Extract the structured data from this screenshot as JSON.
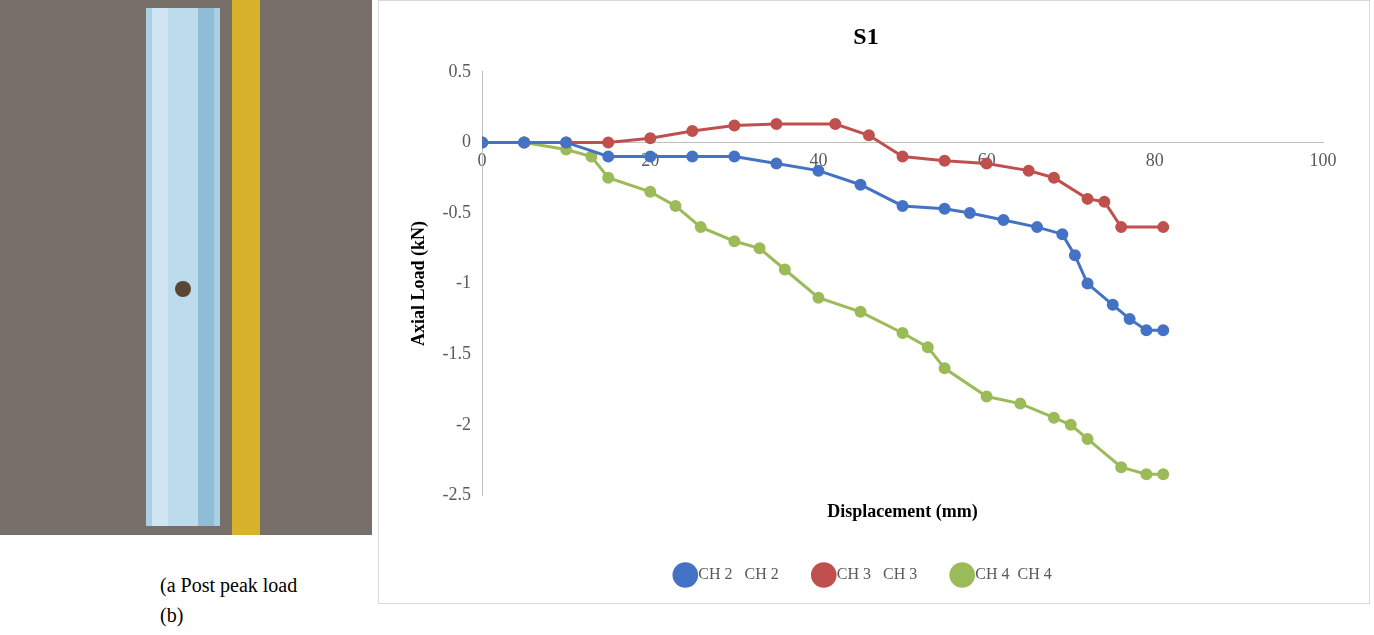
{
  "panel_captions": [
    "(a Post peak load",
    "(b)"
  ],
  "chart_data": {
    "type": "line",
    "title": "S1",
    "x_label": "Displacement (mm)",
    "y_label": "Axial Load (kN)",
    "xlim": [
      0,
      100
    ],
    "xticks": [
      0,
      20,
      40,
      60,
      80,
      100
    ],
    "ylim": [
      -2.5,
      0.5
    ],
    "yticks": [
      -2.5,
      -2,
      -1.5,
      -1,
      -0.5,
      0,
      0.5
    ],
    "grid": false,
    "legend": "bottom",
    "series": [
      {
        "name": "CH 2   CH 2",
        "color": "#4472c4",
        "marker": "circle",
        "line_style": "solid",
        "x": [
          0,
          5,
          10,
          15,
          20,
          25,
          30,
          35,
          40,
          45,
          50,
          55,
          58,
          62,
          66,
          69,
          70.5,
          72,
          75,
          77,
          79,
          81
        ],
        "values": [
          0,
          0,
          0,
          -0.1,
          -0.1,
          -0.1,
          -0.1,
          -0.15,
          -0.2,
          -0.3,
          -0.45,
          -0.47,
          -0.5,
          -0.55,
          -0.6,
          -0.65,
          -0.8,
          -1.0,
          -1.15,
          -1.25,
          -1.33,
          -1.33
        ]
      },
      {
        "name": "CH 3   CH 3",
        "color": "#c0504d",
        "marker": "circle",
        "line_style": "solid",
        "x": [
          0,
          5,
          10,
          15,
          20,
          25,
          30,
          35,
          42,
          46,
          50,
          55,
          60,
          65,
          68,
          72,
          74,
          76,
          81
        ],
        "values": [
          0,
          0,
          0,
          0,
          0.03,
          0.08,
          0.12,
          0.13,
          0.13,
          0.05,
          -0.1,
          -0.13,
          -0.15,
          -0.2,
          -0.25,
          -0.4,
          -0.42,
          -0.6,
          -0.6
        ]
      },
      {
        "name": "CH 4  CH 4",
        "color": "#9bbb59",
        "marker": "circle",
        "line_style": "solid",
        "x": [
          0,
          5,
          10,
          13,
          15,
          20,
          23,
          26,
          30,
          33,
          36,
          40,
          45,
          50,
          53,
          55,
          60,
          64,
          68,
          70,
          72,
          76,
          79,
          81
        ],
        "values": [
          0,
          0,
          -0.05,
          -0.1,
          -0.25,
          -0.35,
          -0.45,
          -0.6,
          -0.7,
          -0.75,
          -0.9,
          -1.1,
          -1.2,
          -1.35,
          -1.45,
          -1.6,
          -1.8,
          -1.85,
          -1.95,
          -2.0,
          -2.1,
          -2.3,
          -2.35,
          -2.35
        ]
      }
    ]
  }
}
